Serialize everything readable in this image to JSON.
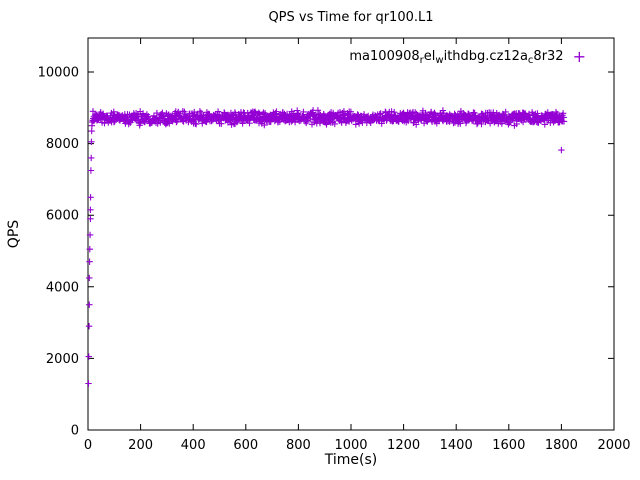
{
  "title": "QPS vs Time for qr100.L1",
  "axes": {
    "x_label": "Time(s)",
    "y_label": "QPS",
    "x_ticks": [
      0,
      200,
      400,
      600,
      800,
      1000,
      1200,
      1400,
      1600,
      1800,
      2000
    ],
    "y_ticks": [
      0,
      2000,
      4000,
      6000,
      8000,
      10000
    ]
  },
  "legend": {
    "label_parts": [
      {
        "text": "ma100908"
      },
      {
        "text": "r",
        "sub": true
      },
      {
        "text": "el"
      },
      {
        "text": "w",
        "sub": true
      },
      {
        "text": "ithdbg.cz12a"
      },
      {
        "text": "c",
        "sub": true
      },
      {
        "text": "8r32"
      }
    ],
    "marker_glyph": "+",
    "marker_color": "#9400D3"
  },
  "chart_data": {
    "type": "scatter",
    "title": "QPS vs Time for qr100.L1",
    "xlabel": "Time(s)",
    "ylabel": "QPS",
    "xlim": [
      0,
      2000
    ],
    "ylim": [
      0,
      10950
    ],
    "grid": false,
    "legend_position": "top-right-inside",
    "marker_style": "plus",
    "series": [
      {
        "name": "ma100908_rel_withdbg.cz12a_c8r32",
        "color": "#9400D3",
        "ramp_points": [
          [
            2,
            1300
          ],
          [
            3,
            2050
          ],
          [
            4,
            2900
          ],
          [
            5,
            3500
          ],
          [
            5,
            4250
          ],
          [
            6,
            4700
          ],
          [
            7,
            5050
          ],
          [
            8,
            5450
          ],
          [
            9,
            5900
          ],
          [
            9,
            6150
          ],
          [
            10,
            6500
          ],
          [
            11,
            7250
          ],
          [
            12,
            7600
          ],
          [
            13,
            8050
          ],
          [
            14,
            8350
          ],
          [
            15,
            8500
          ],
          [
            16,
            8600
          ],
          [
            18,
            8650
          ],
          [
            20,
            8700
          ],
          [
            22,
            8750
          ]
        ],
        "steady_state": {
          "x_start": 20,
          "x_end": 1810,
          "mean_qps": 8720,
          "jitter_qps": 115,
          "n_points": 1150
        },
        "outlier_points": [
          [
            1800,
            7820
          ]
        ]
      }
    ]
  }
}
